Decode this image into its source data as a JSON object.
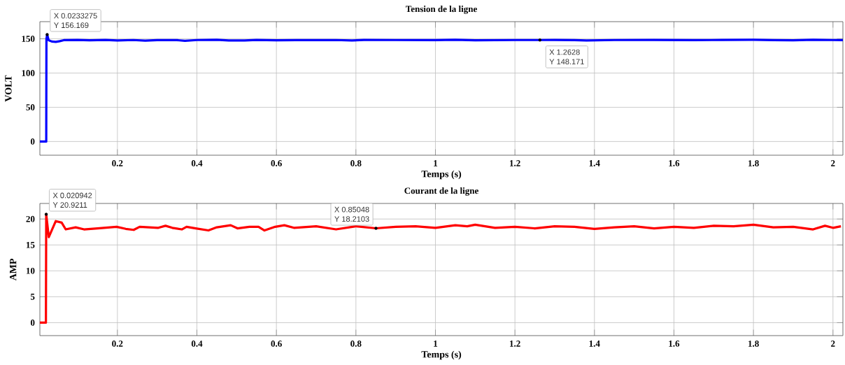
{
  "chart_data": [
    {
      "type": "line",
      "title": "Tension de la ligne",
      "xlabel": "Temps (s)",
      "ylabel": "VOLT",
      "xlim": [
        0.005,
        2.025
      ],
      "ylim": [
        -20,
        175
      ],
      "xticks": [
        0.2,
        0.4,
        0.6,
        0.8,
        1,
        1.2,
        1.4,
        1.6,
        1.8,
        2
      ],
      "yticks": [
        0,
        50,
        100,
        150
      ],
      "grid": true,
      "line_style": "solid",
      "series": [
        {
          "color": "#0000ff",
          "x": [
            0.005,
            0.021,
            0.0215,
            0.0233275,
            0.027,
            0.035,
            0.045,
            0.055,
            0.065,
            0.1,
            0.13,
            0.17,
            0.2,
            0.24,
            0.27,
            0.3,
            0.35,
            0.37,
            0.4,
            0.45,
            0.48,
            0.52,
            0.55,
            0.6,
            0.65,
            0.7,
            0.75,
            0.79,
            0.82,
            0.9,
            1.0,
            1.05,
            1.1,
            1.2,
            1.2628,
            1.3,
            1.35,
            1.38,
            1.45,
            1.55,
            1.65,
            1.72,
            1.8,
            1.85,
            1.9,
            1.95,
            2.0,
            2.025
          ],
          "values": [
            0,
            0,
            150,
            156.169,
            148,
            146,
            145.5,
            146.5,
            148,
            148.3,
            147.8,
            148.3,
            147.5,
            148.2,
            147.3,
            148.1,
            148,
            147,
            148.2,
            148.5,
            147.5,
            147.6,
            148.4,
            147.8,
            148,
            148,
            148.2,
            147.5,
            148.3,
            148.2,
            148,
            148.5,
            147.8,
            148.2,
            148.171,
            148.3,
            148,
            147.5,
            148.2,
            148.3,
            148,
            148.3,
            148.5,
            148,
            147.8,
            148.5,
            148.2,
            148
          ]
        }
      ],
      "annotations": [
        {
          "text": "X 0.0233275",
          "x": 0.0233275,
          "y": 156.169
        },
        {
          "text": "Y 156.169",
          "x": 0.0233275,
          "y": 156.169
        },
        {
          "text": "X 1.2628",
          "x": 1.2628,
          "y": 148.171
        },
        {
          "text": "Y 148.171",
          "x": 1.2628,
          "y": 148.171
        }
      ]
    },
    {
      "type": "line",
      "title": "Courant de la ligne",
      "xlabel": "Temps (s)",
      "ylabel": "AMP",
      "xlim": [
        0.005,
        2.025
      ],
      "ylim": [
        -2.5,
        23
      ],
      "xticks": [
        0.2,
        0.4,
        0.6,
        0.8,
        1,
        1.2,
        1.4,
        1.6,
        1.8,
        2
      ],
      "yticks": [
        0,
        5,
        10,
        15,
        20
      ],
      "grid": true,
      "line_style": "solid",
      "series": [
        {
          "color": "#ff0000",
          "x": [
            0.005,
            0.0202,
            0.020942,
            0.0274,
            0.045,
            0.0598,
            0.07,
            0.095,
            0.116,
            0.15,
            0.198,
            0.221,
            0.241,
            0.256,
            0.303,
            0.321,
            0.338,
            0.362,
            0.374,
            0.397,
            0.429,
            0.45,
            0.485,
            0.502,
            0.532,
            0.555,
            0.57,
            0.597,
            0.62,
            0.644,
            0.7,
            0.75,
            0.8,
            0.85048,
            0.9,
            0.95,
            1.0,
            1.05,
            1.08,
            1.1,
            1.15,
            1.2,
            1.25,
            1.3,
            1.35,
            1.4,
            1.45,
            1.5,
            1.55,
            1.6,
            1.65,
            1.7,
            1.75,
            1.8,
            1.85,
            1.9,
            1.95,
            1.98,
            2.0,
            2.02
          ],
          "values": [
            0,
            0,
            20.9211,
            16.5,
            19.6,
            19.3,
            18,
            18.4,
            18,
            18.2,
            18.5,
            18.1,
            17.9,
            18.5,
            18.3,
            18.7,
            18.3,
            18,
            18.5,
            18.2,
            17.8,
            18.4,
            18.8,
            18.2,
            18.5,
            18.5,
            17.8,
            18.5,
            18.8,
            18.3,
            18.6,
            18,
            18.6,
            18.2103,
            18.5,
            18.6,
            18.3,
            18.8,
            18.6,
            18.9,
            18.3,
            18.5,
            18.2,
            18.6,
            18.5,
            18.1,
            18.4,
            18.6,
            18.2,
            18.5,
            18.3,
            18.7,
            18.6,
            18.9,
            18.4,
            18.5,
            18,
            18.7,
            18.3,
            18.6
          ]
        }
      ],
      "annotations": [
        {
          "text": "X 0.020942",
          "x": 0.020942,
          "y": 20.9211
        },
        {
          "text": "Y 20.9211",
          "x": 0.020942,
          "y": 20.9211
        },
        {
          "text": "X 0.85048",
          "x": 0.85048,
          "y": 18.2103
        },
        {
          "text": "Y 18.2103",
          "x": 0.85048,
          "y": 18.2103
        }
      ]
    }
  ]
}
